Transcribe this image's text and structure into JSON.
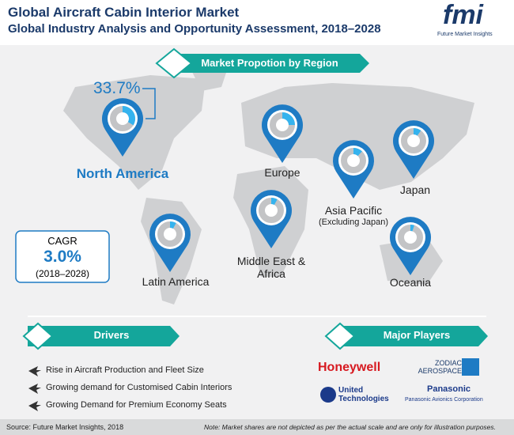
{
  "header": {
    "title": "Global Aircraft Cabin Interior Market",
    "subtitle": "Global Industry Analysis and Opportunity Assessment, 2018–2028"
  },
  "logo": {
    "mark": "fmi",
    "name": "Future Market Insights"
  },
  "map": {
    "heading": "Market Propotion by Region",
    "regions": [
      {
        "name": "North America",
        "share": 33.7,
        "share_label": "33.7%"
      },
      {
        "name": "Europe",
        "share": 25
      },
      {
        "name": "Japan",
        "share": 10
      },
      {
        "name": "Asia Pacific",
        "note": "(Excluding Japan)",
        "share": 12
      },
      {
        "name": "Middle East & Africa",
        "share": 8
      },
      {
        "name": "Latin America",
        "share": 8
      },
      {
        "name": "Oceania",
        "share": 5
      }
    ],
    "cagr": {
      "label": "CAGR",
      "value": "3.0%",
      "period": "(2018–2028)"
    }
  },
  "drivers": {
    "heading": "Drivers",
    "items": [
      "Rise in Aircraft Production and Fleet Size",
      "Growing demand for Customised Cabin Interiors",
      "Growing Demand for Premium Economy Seats"
    ]
  },
  "players": {
    "heading": "Major Players",
    "companies": [
      "Honeywell",
      "ZODIAC AEROSPACE",
      "United Technologies",
      "Panasonic"
    ],
    "company_note": "Panasonic Avionics Corporation"
  },
  "footer": {
    "source": "Source: Future Market Insights, 2018",
    "note": "Note: Market shares are not depicted as per the actual scale and are only for illustration purposes."
  }
}
